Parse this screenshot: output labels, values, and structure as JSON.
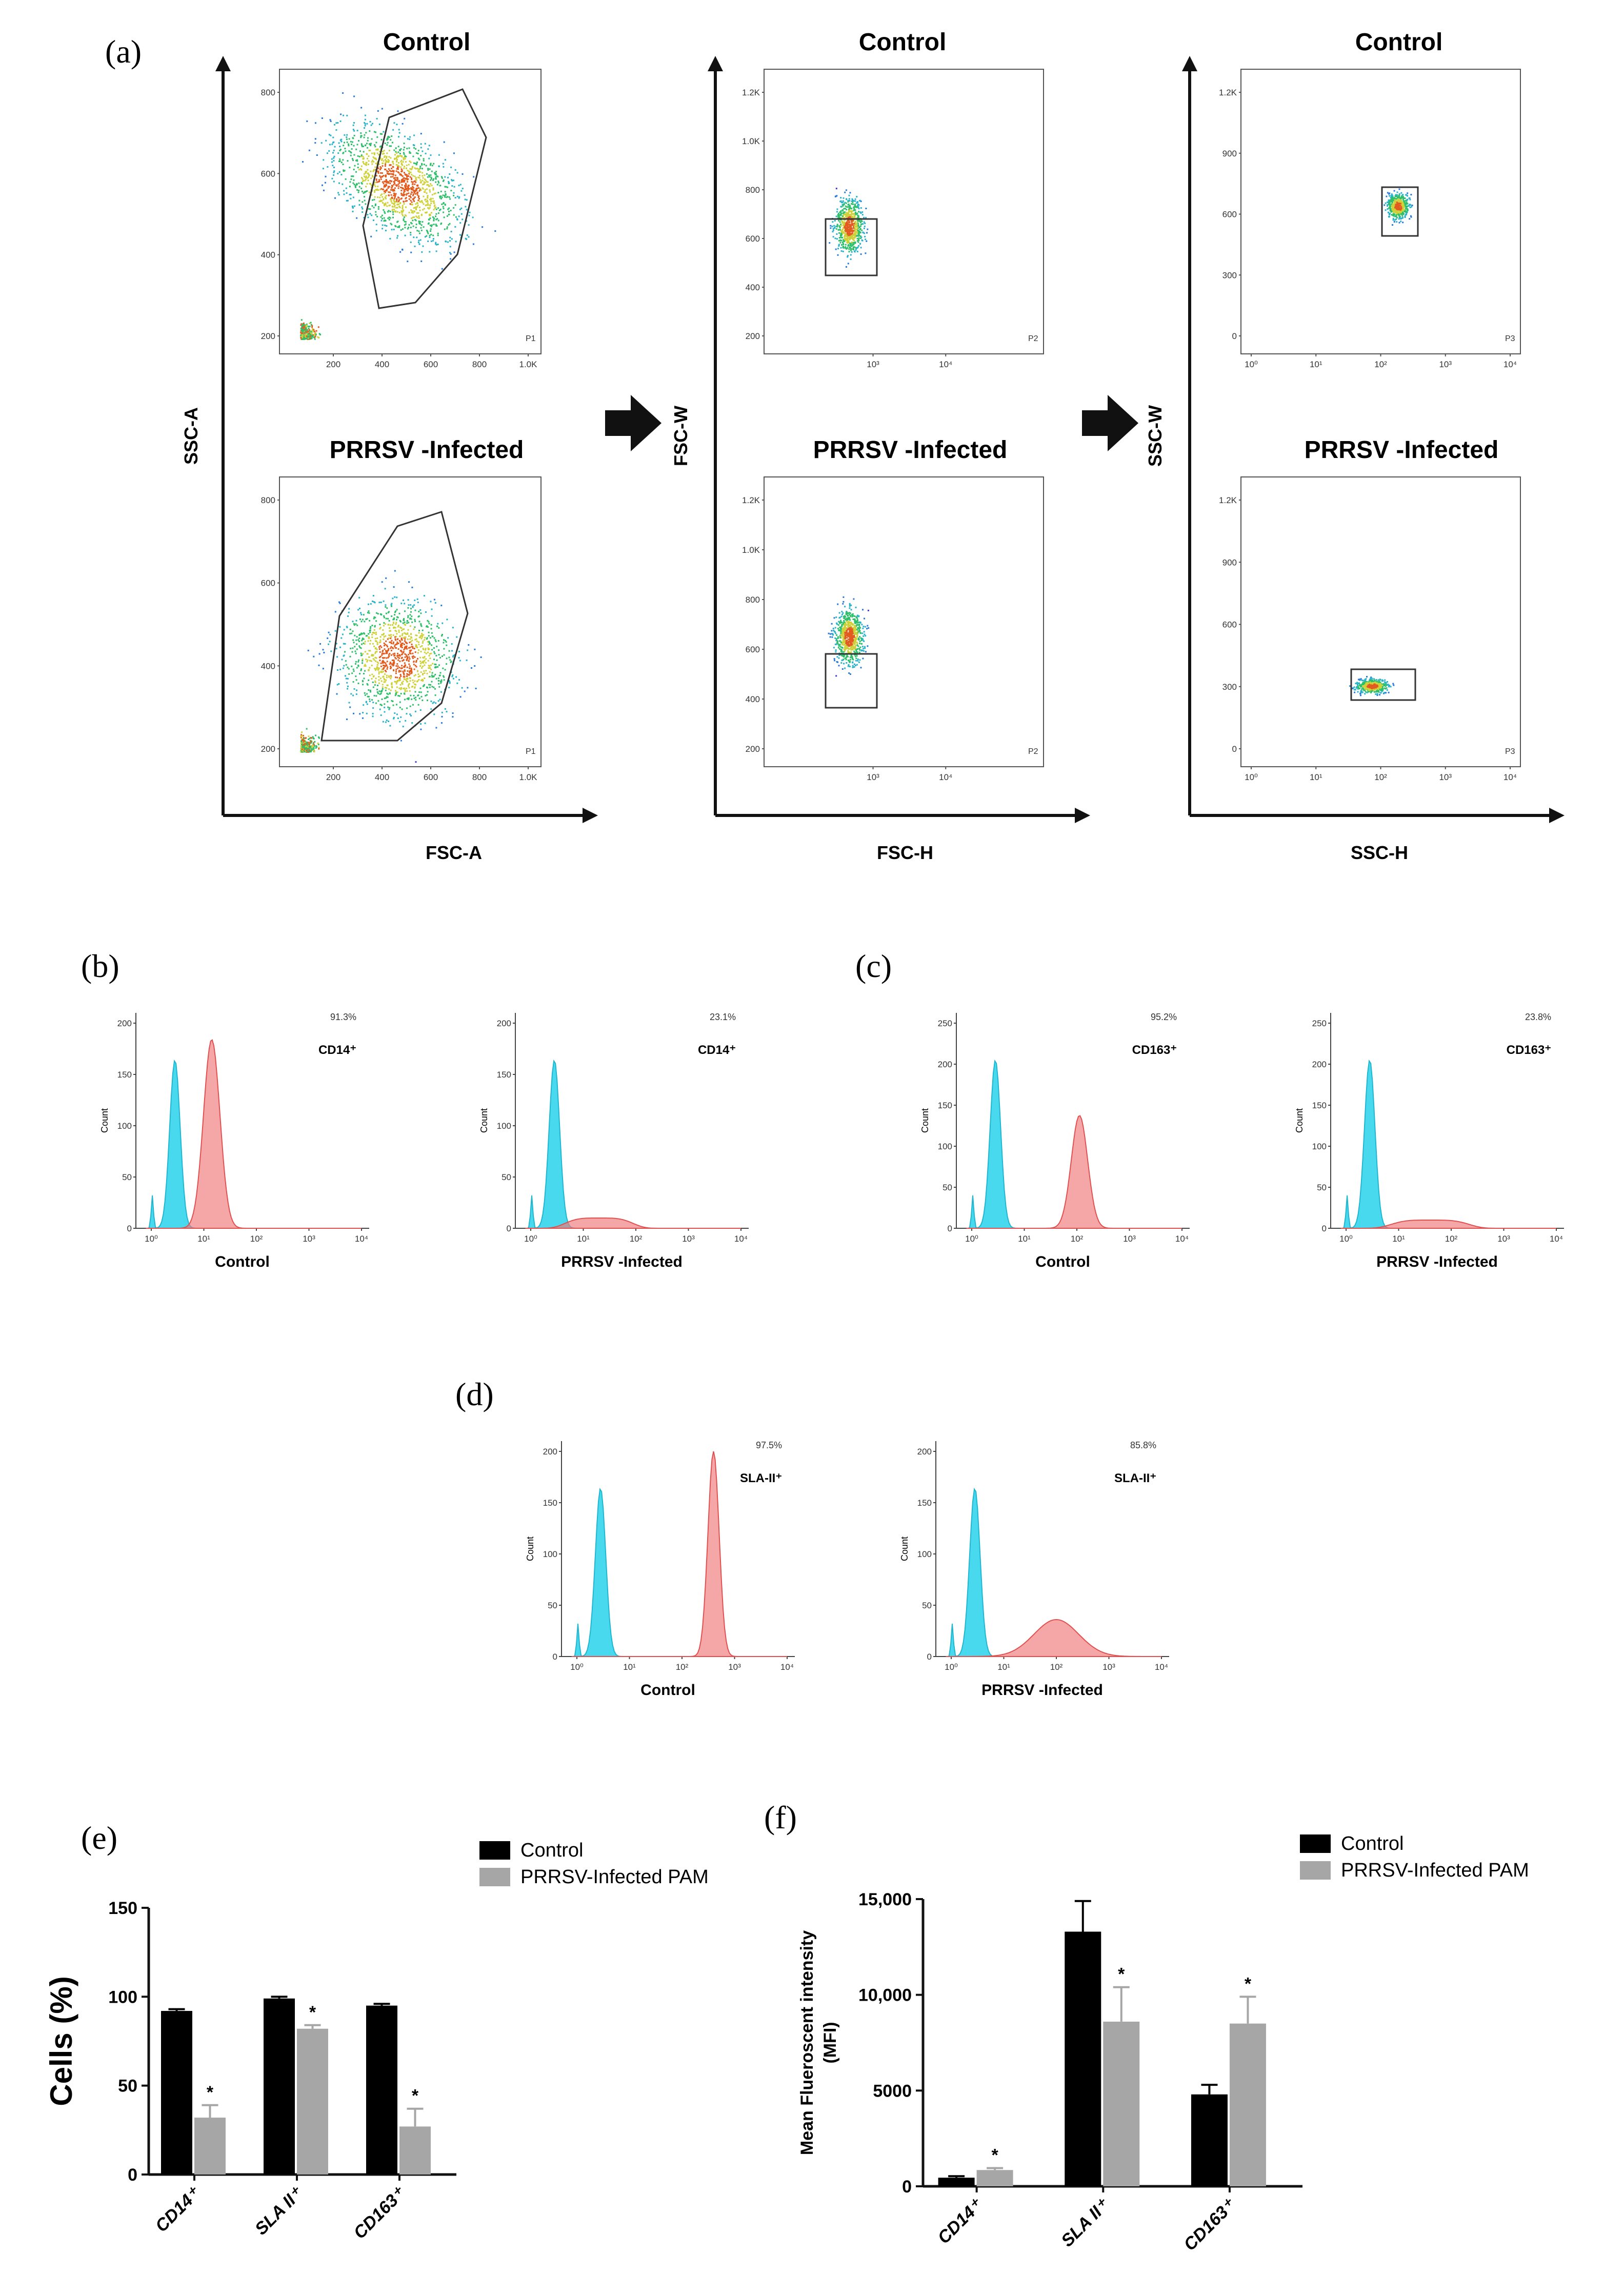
{
  "panels": {
    "a": "(a)",
    "b": "(b)",
    "c": "(c)",
    "d": "(d)",
    "e": "(e)",
    "f": "(f)"
  },
  "scatter": {
    "row_titles": [
      "Control",
      "PRRSV -Infected"
    ],
    "columns": [
      {
        "y_label": "SSC-A",
        "x_label": "FSC-A",
        "gate": "P1",
        "x_ticks": [
          "200",
          "400",
          "600",
          "800",
          "1.0K"
        ],
        "y_ticks": [
          "200",
          "400",
          "600",
          "800"
        ]
      },
      {
        "y_label": "FSC-W",
        "x_label": "FSC-H",
        "gate": "P2",
        "x_ticks": [
          "10³",
          "10⁴"
        ],
        "y_ticks": [
          "200",
          "400",
          "600",
          "800",
          "1.0K",
          "1.2K"
        ]
      },
      {
        "y_label": "SSC-W",
        "x_label": "SSC-H",
        "gate": "P3",
        "x_ticks": [
          "10⁰",
          "10¹",
          "10²",
          "10³",
          "10⁴"
        ],
        "y_ticks": [
          "0",
          "300",
          "600",
          "900",
          "1.2K"
        ]
      }
    ]
  },
  "histograms": {
    "count_label": "Count",
    "x_ticks": [
      "10⁰",
      "10¹",
      "10²",
      "10³",
      "10⁴"
    ],
    "plots": [
      {
        "panel": "b",
        "marker": "CD14⁺",
        "percent": "91.3%",
        "x_label": "Control",
        "y_ticks": [
          "0",
          "50",
          "100",
          "150",
          "200"
        ]
      },
      {
        "panel": "b",
        "marker": "CD14⁺",
        "percent": "23.1%",
        "x_label": "PRRSV -Infected",
        "y_ticks": [
          "0",
          "50",
          "100",
          "150",
          "200"
        ]
      },
      {
        "panel": "c",
        "marker": "CD163⁺",
        "percent": "95.2%",
        "x_label": "Control",
        "y_ticks": [
          "0",
          "50",
          "100",
          "150",
          "200",
          "250"
        ]
      },
      {
        "panel": "c",
        "marker": "CD163⁺",
        "percent": "23.8%",
        "x_label": "PRRSV -Infected",
        "y_ticks": [
          "0",
          "50",
          "100",
          "150",
          "200",
          "250"
        ]
      },
      {
        "panel": "d",
        "marker": "SLA-II⁺",
        "percent": "97.5%",
        "x_label": "Control",
        "y_ticks": [
          "0",
          "50",
          "100",
          "150",
          "200"
        ]
      },
      {
        "panel": "d",
        "marker": "SLA-II⁺",
        "percent": "85.8%",
        "x_label": "PRRSV -Infected",
        "y_ticks": [
          "0",
          "50",
          "100",
          "150",
          "200"
        ]
      }
    ]
  },
  "chart_data": [
    {
      "type": "bar",
      "panel": "e",
      "ylabel": "Cells (%)",
      "categories": [
        "CD14⁺",
        "SLA II⁺",
        "CD163⁺"
      ],
      "ylim": [
        0,
        150
      ],
      "y_ticks": [
        "0",
        "50",
        "100",
        "150"
      ],
      "series": [
        {
          "name": "Control",
          "color": "#000000",
          "values": [
            92,
            99,
            95
          ],
          "errors": [
            1,
            1,
            1
          ]
        },
        {
          "name": "PRRSV-Infected PAM",
          "color": "#a6a6a6",
          "values": [
            32,
            82,
            27
          ],
          "errors": [
            7,
            2,
            10
          ]
        }
      ],
      "significance": [
        false,
        true,
        false,
        true,
        false,
        true
      ],
      "significance_mark": "*"
    },
    {
      "type": "bar",
      "panel": "f",
      "ylabel": "Mean Flueroscent intensity\n(MFI)",
      "ylabel_lines": [
        "Mean Flueroscent intensity",
        "(MFI)"
      ],
      "categories": [
        "CD14⁺",
        "SLA II⁺",
        "CD163⁺"
      ],
      "ylim": [
        0,
        15000
      ],
      "y_ticks": [
        "0",
        "5000",
        "10,000",
        "15,000"
      ],
      "series": [
        {
          "name": "Control",
          "color": "#000000",
          "values": [
            450,
            13300,
            4800
          ],
          "errors": [
            80,
            1600,
            500
          ]
        },
        {
          "name": "PRRSV-Infected PAM",
          "color": "#a6a6a6",
          "values": [
            850,
            8600,
            8500
          ],
          "errors": [
            100,
            1800,
            1400
          ]
        }
      ],
      "significance": [
        false,
        true,
        false,
        true,
        false,
        true
      ],
      "significance_mark": "*"
    }
  ]
}
